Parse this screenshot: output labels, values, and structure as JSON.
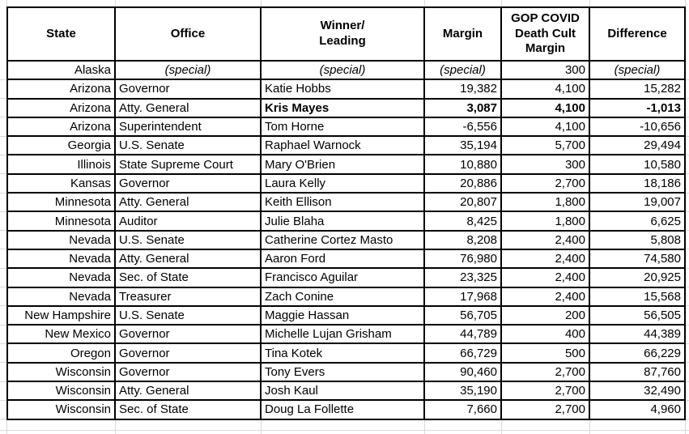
{
  "colors": {
    "dem_blue": "#29ABE2",
    "rep_orange": "#FBAD34",
    "gop_yellow": "#FCF53C",
    "flag_gray": "#C3C3C3",
    "border_black": "#000000",
    "faint_gridline": "#D9D9D9"
  },
  "table": {
    "columns": [
      {
        "label": "State"
      },
      {
        "label": "Office"
      },
      {
        "label": "Winner/\nLeading"
      },
      {
        "label": "Margin"
      },
      {
        "label": "GOP COVID\nDeath Cult\nMargin"
      },
      {
        "label": "Difference"
      }
    ],
    "rows": [
      {
        "state": "Alaska",
        "office": "(special)",
        "winner": "(special)",
        "margin": "(special)",
        "gop_margin": "300",
        "difference": "(special)",
        "winner_fill": "none",
        "bold": false,
        "difference_fill": "none",
        "special": true
      },
      {
        "state": "Arizona",
        "office": "Governor",
        "winner": "Katie Hobbs",
        "margin": "19,382",
        "gop_margin": "4,100",
        "difference": "15,282",
        "winner_fill": "blue",
        "bold": false,
        "difference_fill": "none",
        "special": false
      },
      {
        "state": "Arizona",
        "office": "Atty. General",
        "winner": "Kris Mayes",
        "margin": "3,087",
        "gop_margin": "4,100",
        "difference": "-1,013",
        "winner_fill": "blue",
        "bold": true,
        "difference_fill": "gray",
        "special": false
      },
      {
        "state": "Arizona",
        "office": "Superintendent",
        "winner": "Tom Horne",
        "margin": "-6,556",
        "gop_margin": "4,100",
        "difference": "-10,656",
        "winner_fill": "orange",
        "bold": false,
        "difference_fill": "none",
        "special": false
      },
      {
        "state": "Georgia",
        "office": "U.S. Senate",
        "winner": "Raphael Warnock",
        "margin": "35,194",
        "gop_margin": "5,700",
        "difference": "29,494",
        "winner_fill": "blue",
        "bold": false,
        "difference_fill": "none",
        "special": false
      },
      {
        "state": "Illinois",
        "office": "State Supreme Court",
        "winner": "Mary O'Brien",
        "margin": "10,880",
        "gop_margin": "300",
        "difference": "10,580",
        "winner_fill": "blue",
        "bold": false,
        "difference_fill": "none",
        "special": false
      },
      {
        "state": "Kansas",
        "office": "Governor",
        "winner": "Laura Kelly",
        "margin": "20,886",
        "gop_margin": "2,700",
        "difference": "18,186",
        "winner_fill": "blue",
        "bold": false,
        "difference_fill": "none",
        "special": false
      },
      {
        "state": "Minnesota",
        "office": "Atty. General",
        "winner": "Keith Ellison",
        "margin": "20,807",
        "gop_margin": "1,800",
        "difference": "19,007",
        "winner_fill": "blue",
        "bold": false,
        "difference_fill": "none",
        "special": false
      },
      {
        "state": "Minnesota",
        "office": "Auditor",
        "winner": "Julie Blaha",
        "margin": "8,425",
        "gop_margin": "1,800",
        "difference": "6,625",
        "winner_fill": "blue",
        "bold": false,
        "difference_fill": "gray",
        "special": false
      },
      {
        "state": "Nevada",
        "office": "U.S. Senate",
        "winner": "Catherine Cortez Masto",
        "margin": "8,208",
        "gop_margin": "2,400",
        "difference": "5,808",
        "winner_fill": "blue",
        "bold": false,
        "difference_fill": "gray",
        "special": false
      },
      {
        "state": "Nevada",
        "office": "Atty. General",
        "winner": "Aaron Ford",
        "margin": "76,980",
        "gop_margin": "2,400",
        "difference": "74,580",
        "winner_fill": "blue",
        "bold": false,
        "difference_fill": "none",
        "special": false
      },
      {
        "state": "Nevada",
        "office": "Sec. of State",
        "winner": "Francisco Aguilar",
        "margin": "23,325",
        "gop_margin": "2,400",
        "difference": "20,925",
        "winner_fill": "blue",
        "bold": false,
        "difference_fill": "none",
        "special": false
      },
      {
        "state": "Nevada",
        "office": "Treasurer",
        "winner": "Zach Conine",
        "margin": "17,968",
        "gop_margin": "2,400",
        "difference": "15,568",
        "winner_fill": "blue",
        "bold": false,
        "difference_fill": "none",
        "special": false
      },
      {
        "state": "New Hampshire",
        "office": "U.S. Senate",
        "winner": "Maggie Hassan",
        "margin": "56,705",
        "gop_margin": "200",
        "difference": "56,505",
        "winner_fill": "blue",
        "bold": false,
        "difference_fill": "none",
        "special": false
      },
      {
        "state": "New Mexico",
        "office": "Governor",
        "winner": "Michelle Lujan Grisham",
        "margin": "44,789",
        "gop_margin": "400",
        "difference": "44,389",
        "winner_fill": "blue",
        "bold": false,
        "difference_fill": "none",
        "special": false
      },
      {
        "state": "Oregon",
        "office": "Governor",
        "winner": "Tina Kotek",
        "margin": "66,729",
        "gop_margin": "500",
        "difference": "66,229",
        "winner_fill": "blue",
        "bold": false,
        "difference_fill": "none",
        "special": false
      },
      {
        "state": "Wisconsin",
        "office": "Governor",
        "winner": "Tony Evers",
        "margin": "90,460",
        "gop_margin": "2,700",
        "difference": "87,760",
        "winner_fill": "blue",
        "bold": false,
        "difference_fill": "none",
        "special": false
      },
      {
        "state": "Wisconsin",
        "office": "Atty. General",
        "winner": "Josh Kaul",
        "margin": "35,190",
        "gop_margin": "2,700",
        "difference": "32,490",
        "winner_fill": "blue",
        "bold": false,
        "difference_fill": "none",
        "special": false
      },
      {
        "state": "Wisconsin",
        "office": "Sec. of State",
        "winner": "Doug La Follette",
        "margin": "7,660",
        "gop_margin": "2,700",
        "difference": "4,960",
        "winner_fill": "blue",
        "bold": false,
        "difference_fill": "gray",
        "special": false
      }
    ]
  }
}
